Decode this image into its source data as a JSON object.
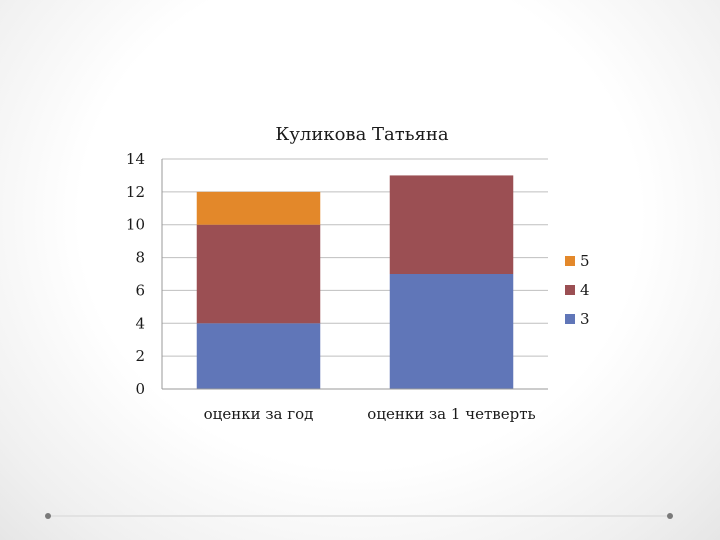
{
  "chart_data": {
    "type": "bar",
    "stacked": true,
    "title": "Куликова Татьяна",
    "xlabel": "",
    "ylabel": "",
    "categories": [
      "оценки за год",
      "оценки за 1 четверть"
    ],
    "series": [
      {
        "name": "3",
        "values": [
          4,
          7
        ],
        "color": "#6076B8"
      },
      {
        "name": "4",
        "values": [
          6,
          6
        ],
        "color": "#9B4F53"
      },
      {
        "name": "5",
        "values": [
          2,
          0
        ],
        "color": "#E3882A"
      }
    ],
    "ylim": [
      0,
      14
    ],
    "yticks": [
      0,
      2,
      4,
      6,
      8,
      10,
      12,
      14
    ],
    "grid": true,
    "legend_position": "right",
    "legend_order": [
      "5",
      "4",
      "3"
    ]
  },
  "colors": {
    "gridline": "#bfbfbf",
    "axis": "#9a9a9a",
    "decoration_dot": "#7a7a7a"
  }
}
